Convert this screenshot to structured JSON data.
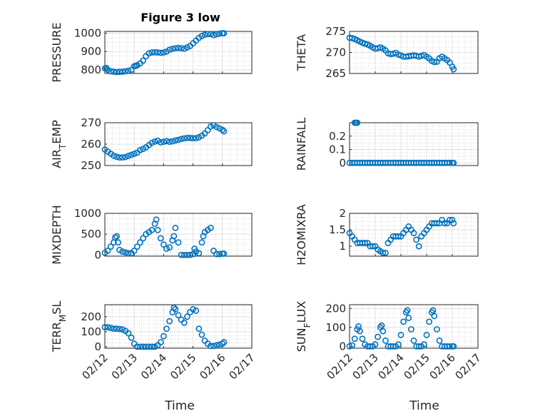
{
  "style": {
    "marker_color": "#0072BD",
    "grid_color": "#c8c8c8",
    "axis_color": "#262626"
  },
  "figure_title": "Figure 3 low",
  "x_axis": {
    "label": "Time",
    "tick_values": [
      0,
      1,
      2,
      3,
      4,
      5
    ],
    "tick_labels": [
      "02/12",
      "02/13",
      "02/14",
      "02/15",
      "02/16",
      "02/17"
    ]
  },
  "chart_data": [
    {
      "type": "scatter",
      "ylabel": "PRESSURE",
      "ylim": [
        780,
        1010
      ],
      "yticks": [
        800,
        900,
        1000
      ],
      "x": [
        0.0,
        0.05,
        0.1,
        0.2,
        0.3,
        0.4,
        0.5,
        0.6,
        0.7,
        0.8,
        0.9,
        1.0,
        1.05,
        1.1,
        1.2,
        1.3,
        1.4,
        1.5,
        1.6,
        1.7,
        1.8,
        1.9,
        2.0,
        2.1,
        2.2,
        2.3,
        2.4,
        2.5,
        2.6,
        2.7,
        2.8,
        2.9,
        3.0,
        3.1,
        3.2,
        3.3,
        3.4,
        3.5,
        3.6,
        3.7,
        3.8,
        3.9,
        4.0,
        4.05
      ],
      "y": [
        808,
        810,
        800,
        792,
        790,
        788,
        789,
        790,
        792,
        795,
        800,
        820,
        822,
        825,
        835,
        850,
        875,
        890,
        895,
        896,
        895,
        893,
        895,
        900,
        910,
        915,
        918,
        920,
        918,
        915,
        922,
        930,
        945,
        960,
        975,
        985,
        992,
        996,
        995,
        990,
        994,
        998,
        1000,
        1000
      ]
    },
    {
      "type": "scatter",
      "ylabel": "THETA",
      "ylim": [
        265,
        275
      ],
      "yticks": [
        265,
        270,
        275
      ],
      "x": [
        0.0,
        0.1,
        0.2,
        0.3,
        0.4,
        0.5,
        0.6,
        0.7,
        0.8,
        0.9,
        1.0,
        1.1,
        1.2,
        1.3,
        1.4,
        1.5,
        1.6,
        1.7,
        1.8,
        1.9,
        2.0,
        2.1,
        2.2,
        2.3,
        2.4,
        2.5,
        2.6,
        2.7,
        2.8,
        2.9,
        3.0,
        3.1,
        3.2,
        3.3,
        3.4,
        3.5,
        3.6,
        3.7,
        3.8,
        3.9,
        4.0,
        4.05
      ],
      "y": [
        273.5,
        273.4,
        273.2,
        272.9,
        272.6,
        272.3,
        272.1,
        271.9,
        271.6,
        271.2,
        270.9,
        271.0,
        271.2,
        270.9,
        270.5,
        269.8,
        269.6,
        269.7,
        269.9,
        269.5,
        269.3,
        269.0,
        269.0,
        269.1,
        269.2,
        269.3,
        269.2,
        269.0,
        269.2,
        269.4,
        269.0,
        268.6,
        268.0,
        267.7,
        267.8,
        268.6,
        269.0,
        268.6,
        268.2,
        267.6,
        266.6,
        266.0
      ]
    },
    {
      "type": "scatter",
      "ylabel": "AIR_TEMP",
      "ylim": [
        250,
        270
      ],
      "yticks": [
        250,
        260,
        270
      ],
      "x": [
        0.0,
        0.1,
        0.2,
        0.3,
        0.4,
        0.5,
        0.6,
        0.7,
        0.8,
        0.9,
        1.0,
        1.1,
        1.2,
        1.3,
        1.4,
        1.5,
        1.6,
        1.7,
        1.8,
        1.9,
        2.0,
        2.1,
        2.2,
        2.3,
        2.4,
        2.5,
        2.6,
        2.7,
        2.8,
        2.9,
        3.0,
        3.1,
        3.2,
        3.3,
        3.4,
        3.5,
        3.6,
        3.7,
        3.8,
        3.9,
        4.0,
        4.05
      ],
      "y": [
        257.5,
        256.5,
        255.5,
        254.6,
        254.1,
        253.8,
        253.8,
        254.0,
        254.5,
        255.0,
        255.5,
        256.0,
        257.2,
        257.8,
        258.5,
        259.6,
        260.6,
        261.2,
        261.6,
        260.8,
        261.1,
        261.4,
        261.1,
        261.3,
        261.7,
        262.0,
        262.4,
        262.7,
        262.9,
        262.9,
        262.8,
        262.8,
        263.2,
        264.0,
        265.0,
        266.5,
        268.2,
        268.8,
        268.0,
        267.4,
        266.7,
        266.0
      ]
    },
    {
      "type": "scatter",
      "ylabel": "RAINFALL",
      "ylim": [
        -0.02,
        0.3
      ],
      "yticks": [
        0,
        0.1,
        0.2
      ],
      "ytick_labels": [
        "0",
        "0.1",
        "0.2"
      ],
      "x": [
        0.0,
        0.1,
        0.2,
        0.3,
        0.4,
        0.5,
        0.6,
        0.7,
        0.8,
        0.9,
        1.0,
        1.1,
        1.2,
        1.3,
        1.4,
        1.5,
        1.6,
        1.7,
        1.8,
        1.9,
        2.0,
        2.1,
        2.2,
        2.3,
        2.4,
        2.5,
        2.6,
        2.7,
        2.8,
        2.9,
        3.0,
        3.1,
        3.2,
        3.3,
        3.4,
        3.5,
        3.6,
        3.7,
        3.8,
        3.9,
        4.0,
        4.05,
        0.2,
        0.25,
        0.3
      ],
      "y": [
        0,
        0,
        0,
        0,
        0,
        0,
        0,
        0,
        0,
        0,
        0,
        0,
        0,
        0,
        0,
        0,
        0,
        0,
        0,
        0,
        0,
        0,
        0,
        0,
        0,
        0,
        0,
        0,
        0,
        0,
        0,
        0,
        0,
        0,
        0,
        0,
        0,
        0,
        0,
        0,
        0,
        0,
        0.3,
        0.3,
        0.3
      ]
    },
    {
      "type": "scatter",
      "ylabel": "MIXDEPTH",
      "ylim": [
        -30,
        1000
      ],
      "yticks": [
        0,
        500,
        1000
      ],
      "x": [
        0.0,
        0.1,
        0.2,
        0.3,
        0.35,
        0.4,
        0.45,
        0.5,
        0.6,
        0.7,
        0.8,
        0.9,
        1.0,
        1.1,
        1.2,
        1.3,
        1.4,
        1.5,
        1.6,
        1.7,
        1.75,
        1.8,
        1.9,
        2.0,
        2.1,
        2.2,
        2.3,
        2.35,
        2.4,
        2.5,
        2.6,
        2.7,
        2.8,
        2.9,
        3.0,
        3.05,
        3.1,
        3.2,
        3.3,
        3.35,
        3.4,
        3.5,
        3.6,
        3.7,
        3.8,
        3.9,
        4.0,
        4.05
      ],
      "y": [
        50,
        100,
        200,
        300,
        420,
        450,
        300,
        120,
        80,
        60,
        40,
        40,
        100,
        200,
        300,
        400,
        500,
        550,
        600,
        750,
        850,
        600,
        400,
        250,
        150,
        180,
        350,
        450,
        650,
        300,
        0,
        0,
        0,
        0,
        20,
        150,
        80,
        40,
        300,
        450,
        550,
        600,
        650,
        100,
        20,
        20,
        30,
        30
      ]
    },
    {
      "type": "scatter",
      "ylabel": "H2OMIXRA",
      "ylim": [
        0.7,
        2.0
      ],
      "yticks": [
        1,
        1.5,
        2
      ],
      "x": [
        0.0,
        0.1,
        0.2,
        0.3,
        0.4,
        0.5,
        0.6,
        0.7,
        0.8,
        0.9,
        1.0,
        1.1,
        1.2,
        1.3,
        1.4,
        1.5,
        1.6,
        1.7,
        1.8,
        1.9,
        2.0,
        2.1,
        2.2,
        2.3,
        2.4,
        2.5,
        2.6,
        2.7,
        2.8,
        2.9,
        3.0,
        3.1,
        3.2,
        3.3,
        3.4,
        3.5,
        3.6,
        3.7,
        3.8,
        3.9,
        4.0,
        4.05
      ],
      "y": [
        1.4,
        1.3,
        1.2,
        1.1,
        1.1,
        1.1,
        1.1,
        1.1,
        1.0,
        1.0,
        1.0,
        0.9,
        0.85,
        0.8,
        0.8,
        1.1,
        1.2,
        1.3,
        1.3,
        1.3,
        1.3,
        1.4,
        1.5,
        1.6,
        1.5,
        1.4,
        1.2,
        1.0,
        1.3,
        1.4,
        1.5,
        1.6,
        1.7,
        1.7,
        1.7,
        1.7,
        1.8,
        1.7,
        1.7,
        1.8,
        1.8,
        1.7
      ]
    },
    {
      "type": "scatter",
      "ylabel": "TERR_MSL",
      "ylim": [
        -10,
        280
      ],
      "yticks": [
        0,
        100,
        200
      ],
      "x": [
        0.0,
        0.1,
        0.2,
        0.3,
        0.4,
        0.5,
        0.6,
        0.7,
        0.8,
        0.9,
        1.0,
        1.1,
        1.2,
        1.3,
        1.4,
        1.5,
        1.6,
        1.7,
        1.8,
        1.9,
        2.0,
        2.1,
        2.2,
        2.3,
        2.35,
        2.4,
        2.5,
        2.6,
        2.7,
        2.8,
        2.9,
        3.0,
        3.1,
        3.2,
        3.3,
        3.4,
        3.5,
        3.6,
        3.7,
        3.8,
        3.9,
        4.0,
        4.05
      ],
      "y": [
        130,
        130,
        125,
        120,
        120,
        118,
        115,
        105,
        90,
        60,
        20,
        0,
        0,
        0,
        0,
        0,
        0,
        0,
        10,
        30,
        70,
        120,
        170,
        230,
        260,
        250,
        210,
        180,
        160,
        200,
        230,
        250,
        240,
        120,
        80,
        40,
        20,
        5,
        5,
        10,
        15,
        20,
        30
      ]
    },
    {
      "type": "scatter",
      "ylabel": "SUN_FLUX",
      "ylim": [
        -10,
        220
      ],
      "yticks": [
        0,
        100,
        200
      ],
      "x": [
        0.0,
        0.1,
        0.2,
        0.3,
        0.35,
        0.4,
        0.5,
        0.6,
        0.7,
        0.8,
        0.9,
        1.0,
        1.1,
        1.2,
        1.25,
        1.3,
        1.4,
        1.5,
        1.6,
        1.7,
        1.8,
        1.9,
        2.0,
        2.1,
        2.2,
        2.25,
        2.3,
        2.4,
        2.5,
        2.6,
        2.7,
        2.8,
        2.9,
        3.0,
        3.1,
        3.2,
        3.25,
        3.3,
        3.4,
        3.5,
        3.6,
        3.7,
        3.8,
        3.9,
        4.0,
        4.05
      ],
      "y": [
        0,
        5,
        40,
        90,
        105,
        80,
        40,
        10,
        0,
        0,
        0,
        10,
        50,
        100,
        110,
        80,
        30,
        0,
        0,
        0,
        0,
        10,
        60,
        130,
        180,
        190,
        150,
        90,
        30,
        0,
        0,
        0,
        10,
        60,
        130,
        180,
        190,
        160,
        90,
        30,
        0,
        0,
        0,
        0,
        0,
        0
      ]
    }
  ]
}
